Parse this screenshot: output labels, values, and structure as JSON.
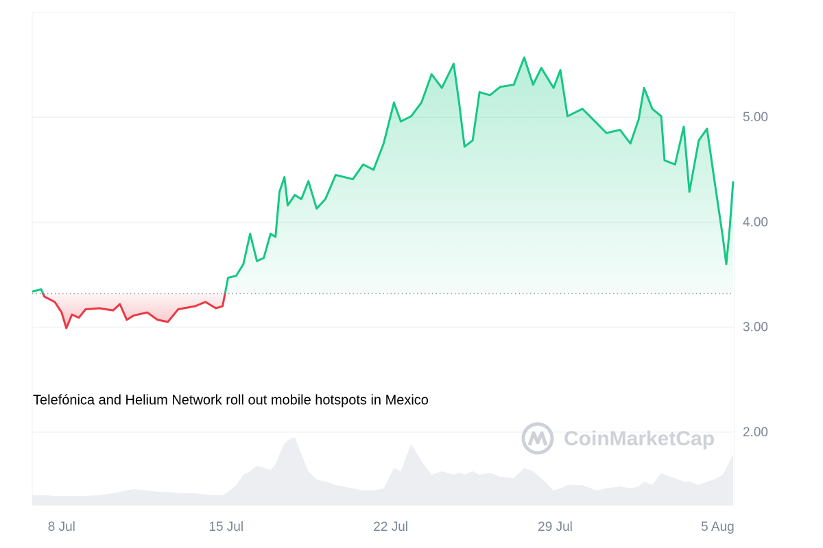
{
  "chart_data": {
    "type": "line",
    "annotation": "Telefónica and Helium Network roll out mobile hotspots in Mexico",
    "watermark": "CoinMarketCap",
    "up_color": "#16c784",
    "down_color": "#ea3943",
    "volume_color": "#eceef1",
    "grid": true,
    "baseline": 3.32,
    "xlim": [
      6.75,
      36.6
    ],
    "xticks": [
      {
        "value": 8,
        "label": "8 Jul"
      },
      {
        "value": 15,
        "label": "15 Jul"
      },
      {
        "value": 22,
        "label": "22 Jul"
      },
      {
        "value": 29,
        "label": "29 Jul"
      },
      {
        "value": 36,
        "label": "5 Aug"
      }
    ],
    "ylim": [
      1.3,
      6.0
    ],
    "yticks": [
      {
        "value": 2,
        "label": "2.00"
      },
      {
        "value": 3,
        "label": "3.00"
      },
      {
        "value": 4,
        "label": "4.00"
      },
      {
        "value": 5,
        "label": "5.00"
      }
    ],
    "y2lim": [
      0,
      720
    ],
    "x": [
      6.75,
      7.13,
      7.27,
      7.71,
      8.0,
      8.2,
      8.44,
      8.73,
      9.02,
      9.6,
      10.19,
      10.48,
      10.77,
      11.06,
      11.64,
      12.08,
      12.52,
      12.96,
      13.69,
      14.12,
      14.56,
      14.85,
      15.08,
      15.43,
      15.73,
      16.02,
      16.31,
      16.6,
      16.89,
      17.1,
      17.27,
      17.48,
      17.62,
      17.92,
      18.2,
      18.5,
      18.85,
      19.22,
      19.66,
      20.39,
      20.83,
      21.27,
      21.7,
      22.14,
      22.43,
      22.87,
      23.31,
      23.74,
      24.18,
      24.68,
      24.91,
      25.14,
      25.49,
      25.78,
      26.22,
      26.66,
      27.24,
      27.68,
      28.06,
      28.41,
      28.93,
      29.22,
      29.52,
      30.16,
      30.74,
      31.18,
      31.76,
      32.2,
      32.55,
      32.78,
      33.13,
      33.51,
      33.65,
      34.1,
      34.47,
      34.71,
      35.11,
      35.46,
      35.76,
      36.13,
      36.28,
      36.43,
      36.57
    ],
    "values": [
      3.34,
      3.36,
      3.29,
      3.24,
      3.14,
      2.99,
      3.12,
      3.09,
      3.17,
      3.18,
      3.16,
      3.22,
      3.07,
      3.11,
      3.14,
      3.07,
      3.05,
      3.17,
      3.2,
      3.24,
      3.18,
      3.2,
      3.47,
      3.49,
      3.6,
      3.89,
      3.63,
      3.66,
      3.89,
      3.86,
      4.29,
      4.43,
      4.16,
      4.26,
      4.22,
      4.39,
      4.13,
      4.22,
      4.45,
      4.41,
      4.55,
      4.5,
      4.75,
      5.14,
      4.96,
      5.01,
      5.14,
      5.41,
      5.28,
      5.51,
      5.14,
      4.72,
      4.78,
      5.24,
      5.21,
      5.29,
      5.31,
      5.57,
      5.31,
      5.47,
      5.28,
      5.45,
      5.01,
      5.08,
      4.95,
      4.85,
      4.88,
      4.75,
      4.98,
      5.28,
      5.08,
      5.01,
      4.59,
      4.55,
      4.91,
      4.29,
      4.78,
      4.89,
      4.42,
      3.86,
      3.6,
      3.96,
      4.39
    ],
    "volume": [
      15,
      15,
      15,
      14,
      14,
      14,
      14,
      14,
      14,
      15,
      18,
      20,
      22,
      24,
      22,
      20,
      20,
      18,
      18,
      16,
      15,
      15,
      20,
      30,
      45,
      50,
      58,
      55,
      52,
      60,
      75,
      90,
      95,
      100,
      75,
      50,
      38,
      35,
      30,
      25,
      22,
      22,
      25,
      55,
      50,
      90,
      65,
      45,
      50,
      45,
      48,
      45,
      50,
      45,
      48,
      42,
      40,
      55,
      50,
      40,
      22,
      25,
      30,
      30,
      22,
      25,
      28,
      25,
      28,
      35,
      30,
      48,
      45,
      40,
      35,
      35,
      30,
      35,
      38,
      45,
      55,
      65,
      75
    ]
  }
}
